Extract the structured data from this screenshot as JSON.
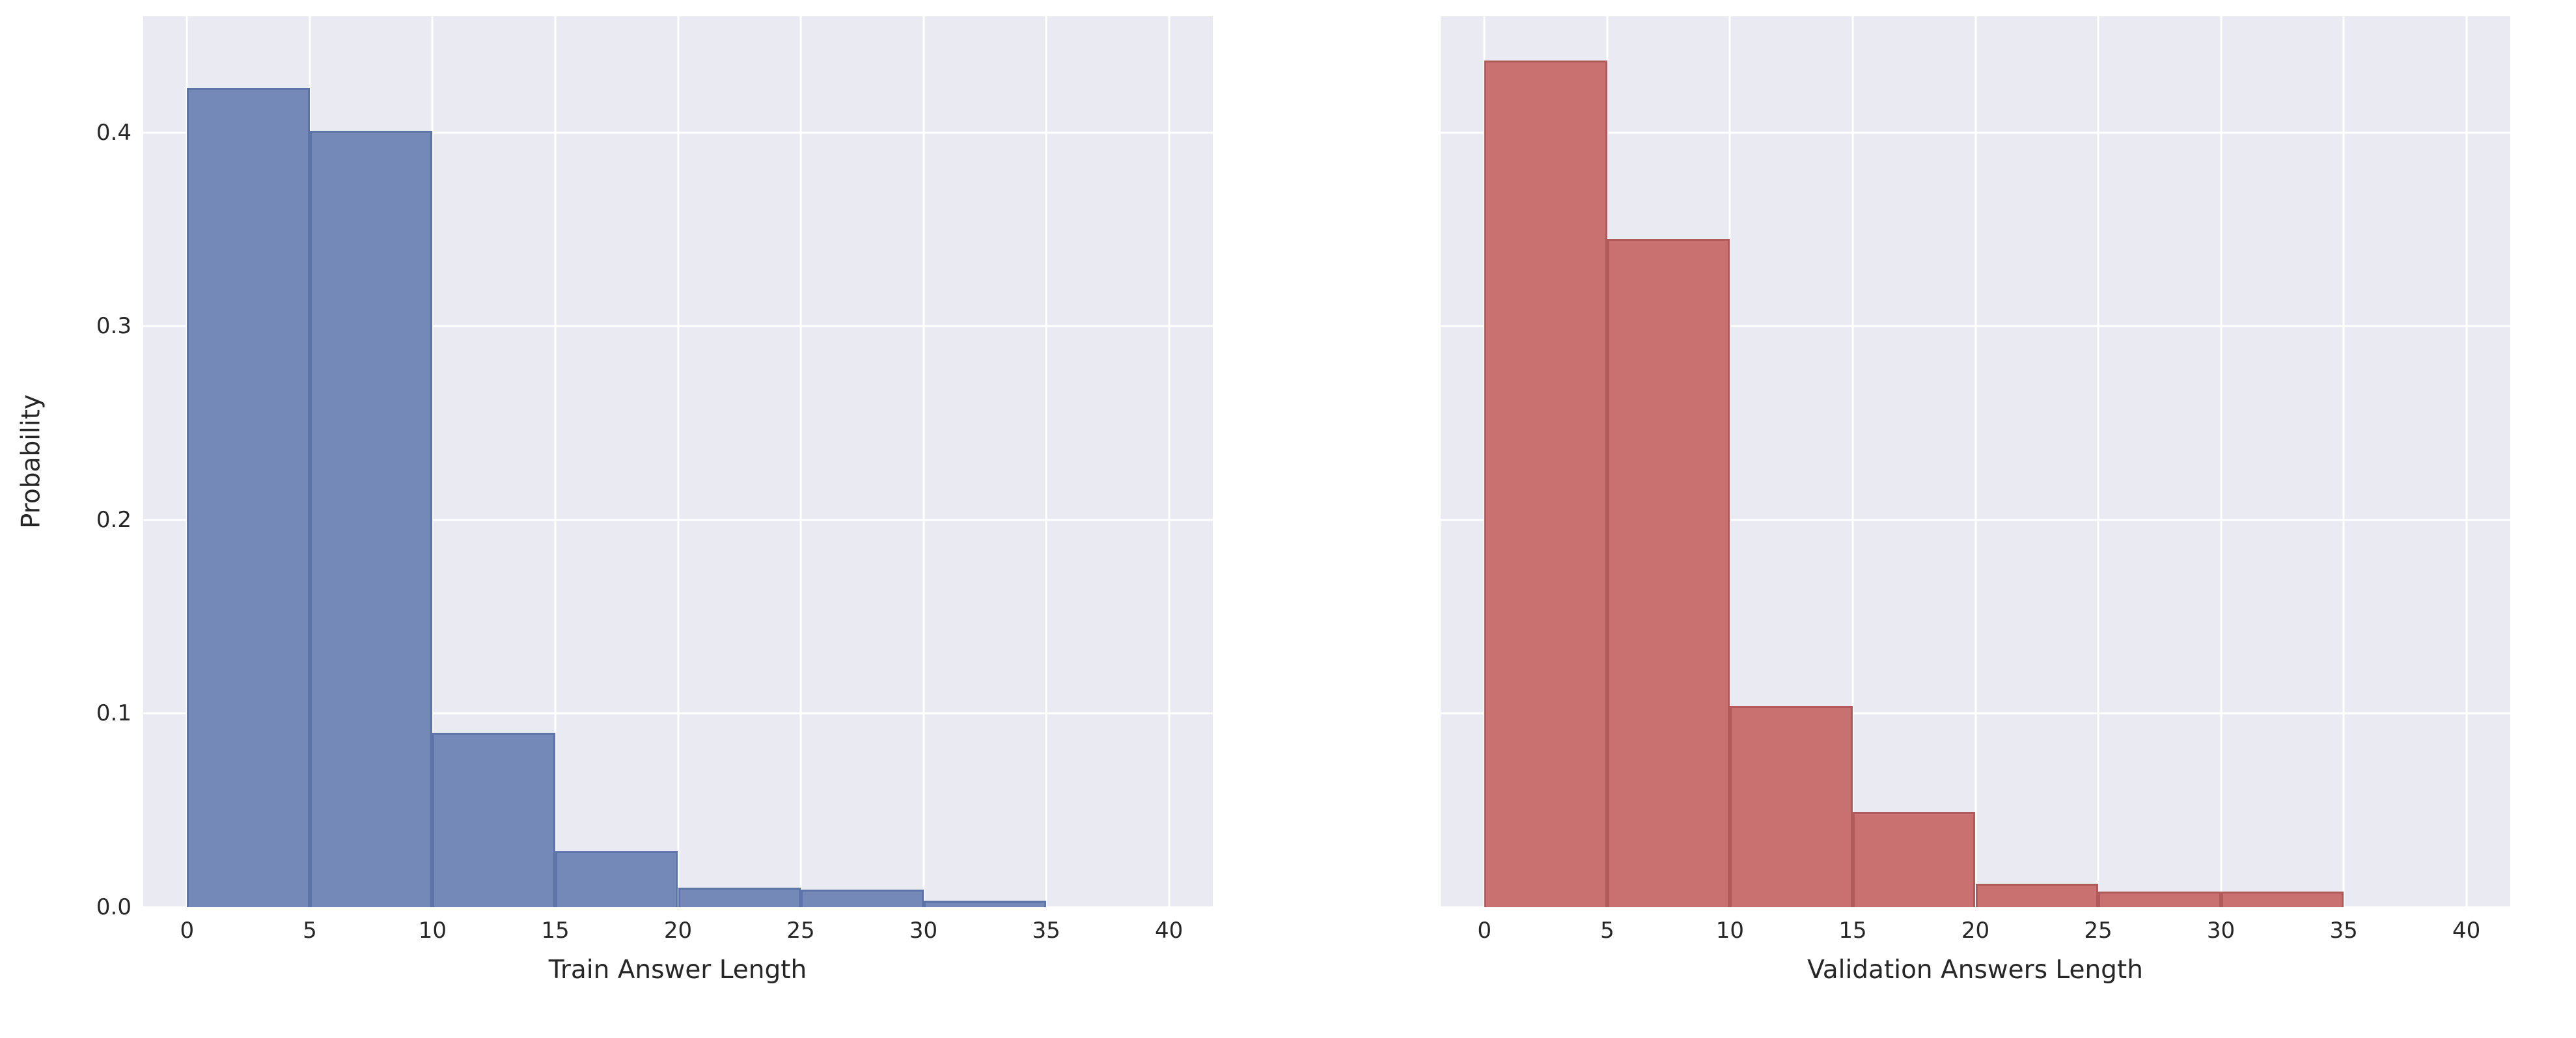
{
  "figure": {
    "background_color": "#ffffff",
    "plot_background_color": "#eaeaf2",
    "grid_color": "#ffffff",
    "text_color": "#262626"
  },
  "chart_data": [
    {
      "type": "bar",
      "subtype": "histogram",
      "title": "",
      "xlabel": "Train Answer Length",
      "ylabel": "Probability",
      "bar_color": "#7489b8",
      "bar_edge_color": "#5c74a7",
      "bin_width": 5,
      "bin_edges": [
        0,
        5,
        10,
        15,
        20,
        25,
        30,
        35
      ],
      "values": [
        0.423,
        0.401,
        0.09,
        0.029,
        0.01,
        0.009,
        0.0035
      ],
      "x_axis": {
        "max": 40,
        "pad_pct": 4.1,
        "tick_values": [
          0,
          5,
          10,
          15,
          20,
          25,
          30,
          35,
          40
        ],
        "tick_labels": [
          "0",
          "5",
          "10",
          "15",
          "20",
          "25",
          "30",
          "35",
          "40"
        ]
      },
      "y_axis": {
        "max": 0.46,
        "show_labels": true,
        "tick_values": [
          0.0,
          0.1,
          0.2,
          0.3,
          0.4
        ],
        "tick_labels": [
          "0.0",
          "0.1",
          "0.2",
          "0.3",
          "0.4"
        ]
      },
      "xlim": [
        -1.8,
        41.8
      ],
      "ylim": [
        0,
        0.46
      ],
      "grid": true,
      "legend": false
    },
    {
      "type": "bar",
      "subtype": "histogram",
      "title": "",
      "xlabel": "Validation Answers Length",
      "ylabel": "",
      "bar_color": "#c97070",
      "bar_edge_color": "#b15a5c",
      "bin_width": 5,
      "bin_edges": [
        0,
        5,
        10,
        15,
        20,
        25,
        30,
        35
      ],
      "values": [
        0.437,
        0.345,
        0.104,
        0.049,
        0.012,
        0.008,
        0.008
      ],
      "x_axis": {
        "max": 40,
        "pad_pct": 4.1,
        "tick_values": [
          0,
          5,
          10,
          15,
          20,
          25,
          30,
          35,
          40
        ],
        "tick_labels": [
          "0",
          "5",
          "10",
          "15",
          "20",
          "25",
          "30",
          "35",
          "40"
        ]
      },
      "y_axis": {
        "max": 0.46,
        "show_labels": false,
        "tick_values": [
          0.0,
          0.1,
          0.2,
          0.3,
          0.4
        ],
        "tick_labels": [
          "0.0",
          "0.1",
          "0.2",
          "0.3",
          "0.4"
        ]
      },
      "xlim": [
        -1.8,
        41.8
      ],
      "ylim": [
        0,
        0.46
      ],
      "grid": true,
      "legend": false
    }
  ]
}
